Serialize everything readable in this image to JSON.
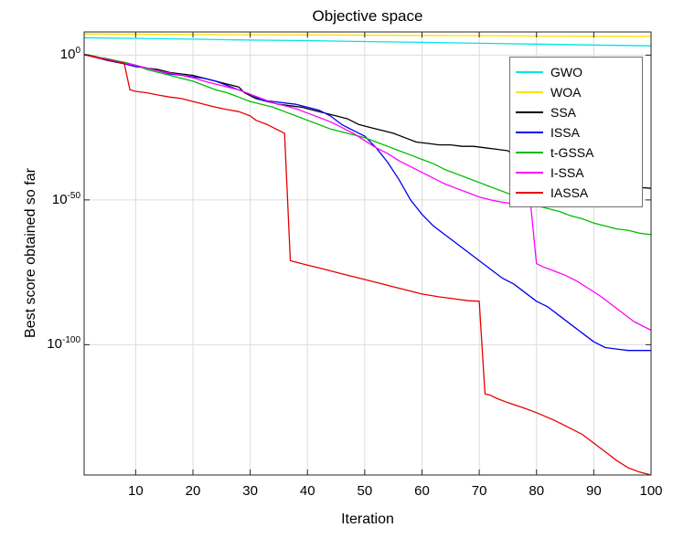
{
  "figure": {
    "background": "#ffffff",
    "axis_color": "#262626",
    "grid_color": "#dcdcdc",
    "tick_color": "#262626"
  },
  "chart_data": {
    "type": "line",
    "title": "Objective space",
    "xlabel": "Iteration",
    "ylabel": "Best score obtained so far",
    "x_range": [
      1,
      100
    ],
    "y_scale": "log10",
    "y_exp_range": [
      8,
      -145
    ],
    "x_ticks": [
      10,
      20,
      30,
      40,
      50,
      60,
      70,
      80,
      90,
      100
    ],
    "y_ticks_exponents": [
      0,
      -50,
      -100
    ],
    "grid": true,
    "legend_position": "top-right",
    "series": [
      {
        "name": "GWO",
        "color": "#00e5e5",
        "points_iter_log10score": [
          [
            1,
            6.0
          ],
          [
            10,
            5.8
          ],
          [
            20,
            5.5
          ],
          [
            30,
            5.2
          ],
          [
            40,
            5.0
          ],
          [
            50,
            4.7
          ],
          [
            60,
            4.4
          ],
          [
            70,
            4.1
          ],
          [
            80,
            3.8
          ],
          [
            90,
            3.5
          ],
          [
            100,
            3.2
          ]
        ]
      },
      {
        "name": "WOA",
        "color": "#ffe100",
        "points_iter_log10score": [
          [
            1,
            7.3
          ],
          [
            20,
            7.1
          ],
          [
            40,
            7.0
          ],
          [
            60,
            6.8
          ],
          [
            80,
            6.6
          ],
          [
            100,
            6.5
          ]
        ]
      },
      {
        "name": "SSA",
        "color": "#000000",
        "points_iter_log10score": [
          [
            1,
            0.3
          ],
          [
            3,
            -0.5
          ],
          [
            5,
            -1.5
          ],
          [
            8,
            -2.5
          ],
          [
            10,
            -3.5
          ],
          [
            12,
            -4.5
          ],
          [
            14,
            -5
          ],
          [
            16,
            -6
          ],
          [
            18,
            -6.5
          ],
          [
            20,
            -7
          ],
          [
            22,
            -8
          ],
          [
            24,
            -9
          ],
          [
            26,
            -10
          ],
          [
            28,
            -11
          ],
          [
            29,
            -13
          ],
          [
            31,
            -15
          ],
          [
            33,
            -16
          ],
          [
            35,
            -17
          ],
          [
            37,
            -17.5
          ],
          [
            39,
            -18
          ],
          [
            41,
            -19
          ],
          [
            43,
            -20
          ],
          [
            45,
            -21
          ],
          [
            47,
            -22
          ],
          [
            49,
            -24
          ],
          [
            51,
            -25
          ],
          [
            53,
            -26
          ],
          [
            55,
            -27
          ],
          [
            57,
            -28.5
          ],
          [
            59,
            -30
          ],
          [
            61,
            -30.5
          ],
          [
            63,
            -31
          ],
          [
            65,
            -31
          ],
          [
            67,
            -31.5
          ],
          [
            69,
            -31.5
          ],
          [
            71,
            -32
          ],
          [
            73,
            -32.5
          ],
          [
            75,
            -33
          ],
          [
            77,
            -36
          ],
          [
            78,
            -38
          ],
          [
            80,
            -38.5
          ],
          [
            82,
            -39
          ],
          [
            84,
            -39.5
          ],
          [
            86,
            -40
          ],
          [
            88,
            -43
          ],
          [
            89,
            -44
          ],
          [
            91,
            -44.5
          ],
          [
            93,
            -45
          ],
          [
            95,
            -45
          ],
          [
            97,
            -45.5
          ],
          [
            100,
            -46
          ]
        ]
      },
      {
        "name": "ISSA",
        "color": "#0000ee",
        "points_iter_log10score": [
          [
            1,
            0.2
          ],
          [
            3,
            -0.8
          ],
          [
            5,
            -1.8
          ],
          [
            8,
            -3
          ],
          [
            10,
            -4
          ],
          [
            12,
            -4.5
          ],
          [
            14,
            -5.5
          ],
          [
            16,
            -6.5
          ],
          [
            18,
            -7
          ],
          [
            20,
            -7.5
          ],
          [
            22,
            -8
          ],
          [
            24,
            -9
          ],
          [
            26,
            -10.5
          ],
          [
            28,
            -12
          ],
          [
            30,
            -13.5
          ],
          [
            32,
            -15.5
          ],
          [
            34,
            -16
          ],
          [
            36,
            -16.5
          ],
          [
            38,
            -17
          ],
          [
            40,
            -18
          ],
          [
            42,
            -19
          ],
          [
            44,
            -21
          ],
          [
            46,
            -24
          ],
          [
            48,
            -26
          ],
          [
            50,
            -28
          ],
          [
            52,
            -32
          ],
          [
            54,
            -37
          ],
          [
            56,
            -43
          ],
          [
            58,
            -50
          ],
          [
            60,
            -55
          ],
          [
            62,
            -59
          ],
          [
            64,
            -62
          ],
          [
            66,
            -65
          ],
          [
            68,
            -68
          ],
          [
            70,
            -71
          ],
          [
            72,
            -74
          ],
          [
            74,
            -77
          ],
          [
            76,
            -79
          ],
          [
            78,
            -82
          ],
          [
            80,
            -85
          ],
          [
            82,
            -87
          ],
          [
            84,
            -90
          ],
          [
            86,
            -93
          ],
          [
            88,
            -96
          ],
          [
            90,
            -99
          ],
          [
            92,
            -101
          ],
          [
            94,
            -101.5
          ],
          [
            96,
            -102
          ],
          [
            98,
            -102
          ],
          [
            100,
            -102
          ]
        ]
      },
      {
        "name": "t-GSSA",
        "color": "#00bb00",
        "points_iter_log10score": [
          [
            1,
            0.2
          ],
          [
            3,
            -0.6
          ],
          [
            5,
            -1.2
          ],
          [
            8,
            -2.5
          ],
          [
            10,
            -3.5
          ],
          [
            12,
            -5
          ],
          [
            14,
            -6
          ],
          [
            16,
            -7
          ],
          [
            18,
            -8
          ],
          [
            20,
            -9
          ],
          [
            22,
            -10.5
          ],
          [
            24,
            -12
          ],
          [
            26,
            -13
          ],
          [
            28,
            -14.5
          ],
          [
            30,
            -16
          ],
          [
            32,
            -17
          ],
          [
            34,
            -18
          ],
          [
            36,
            -19.5
          ],
          [
            38,
            -21
          ],
          [
            40,
            -22.5
          ],
          [
            42,
            -24
          ],
          [
            44,
            -25.5
          ],
          [
            46,
            -26.5
          ],
          [
            48,
            -27.5
          ],
          [
            50,
            -28.5
          ],
          [
            52,
            -30
          ],
          [
            54,
            -31.5
          ],
          [
            56,
            -33
          ],
          [
            58,
            -34.5
          ],
          [
            60,
            -36
          ],
          [
            62,
            -37.5
          ],
          [
            64,
            -39.5
          ],
          [
            66,
            -41
          ],
          [
            68,
            -42.5
          ],
          [
            70,
            -44
          ],
          [
            72,
            -45.5
          ],
          [
            74,
            -47
          ],
          [
            76,
            -48.5
          ],
          [
            78,
            -50
          ],
          [
            80,
            -52
          ],
          [
            82,
            -53
          ],
          [
            84,
            -54
          ],
          [
            86,
            -55.5
          ],
          [
            88,
            -56.5
          ],
          [
            90,
            -58
          ],
          [
            92,
            -59
          ],
          [
            94,
            -60
          ],
          [
            96,
            -60.5
          ],
          [
            98,
            -61.5
          ],
          [
            100,
            -62
          ]
        ]
      },
      {
        "name": "I-SSA",
        "color": "#ff00ff",
        "points_iter_log10score": [
          [
            1,
            0.2
          ],
          [
            3,
            -0.7
          ],
          [
            5,
            -1.4
          ],
          [
            8,
            -2.8
          ],
          [
            10,
            -3.5
          ],
          [
            12,
            -4.5
          ],
          [
            14,
            -5.5
          ],
          [
            16,
            -6.2
          ],
          [
            18,
            -7
          ],
          [
            20,
            -7.8
          ],
          [
            22,
            -9
          ],
          [
            24,
            -10
          ],
          [
            26,
            -11
          ],
          [
            28,
            -12
          ],
          [
            30,
            -13.5
          ],
          [
            32,
            -15
          ],
          [
            34,
            -16.5
          ],
          [
            36,
            -17.5
          ],
          [
            38,
            -18.5
          ],
          [
            40,
            -20
          ],
          [
            42,
            -21.5
          ],
          [
            44,
            -23
          ],
          [
            46,
            -25
          ],
          [
            48,
            -27
          ],
          [
            50,
            -29.5
          ],
          [
            52,
            -32
          ],
          [
            54,
            -34
          ],
          [
            56,
            -36.5
          ],
          [
            58,
            -38.5
          ],
          [
            60,
            -40.5
          ],
          [
            62,
            -42.5
          ],
          [
            64,
            -44.5
          ],
          [
            66,
            -46
          ],
          [
            68,
            -47.5
          ],
          [
            70,
            -49
          ],
          [
            72,
            -50
          ],
          [
            74,
            -50.8
          ],
          [
            76,
            -51.3
          ],
          [
            78,
            -51.8
          ],
          [
            79,
            -52
          ],
          [
            80,
            -72
          ],
          [
            81,
            -73
          ],
          [
            83,
            -74.5
          ],
          [
            85,
            -76
          ],
          [
            87,
            -78
          ],
          [
            89,
            -80.5
          ],
          [
            91,
            -83
          ],
          [
            93,
            -86
          ],
          [
            95,
            -89
          ],
          [
            97,
            -92
          ],
          [
            100,
            -95
          ]
        ]
      },
      {
        "name": "IASSA",
        "color": "#e60000",
        "points_iter_log10score": [
          [
            1,
            0.1
          ],
          [
            2,
            -0.3
          ],
          [
            3,
            -0.8
          ],
          [
            4,
            -1.2
          ],
          [
            5,
            -1.6
          ],
          [
            6,
            -2
          ],
          [
            7,
            -2.4
          ],
          [
            8,
            -2.8
          ],
          [
            9,
            -12
          ],
          [
            10,
            -12.5
          ],
          [
            12,
            -13
          ],
          [
            14,
            -13.8
          ],
          [
            16,
            -14.5
          ],
          [
            18,
            -15
          ],
          [
            20,
            -16
          ],
          [
            22,
            -17
          ],
          [
            24,
            -18
          ],
          [
            26,
            -18.8
          ],
          [
            28,
            -19.5
          ],
          [
            30,
            -21
          ],
          [
            31,
            -22.5
          ],
          [
            33,
            -24
          ],
          [
            35,
            -26
          ],
          [
            36,
            -27
          ],
          [
            37,
            -71
          ],
          [
            38,
            -71.5
          ],
          [
            40,
            -72.5
          ],
          [
            42,
            -73.5
          ],
          [
            45,
            -75
          ],
          [
            48,
            -76.5
          ],
          [
            50,
            -77.5
          ],
          [
            53,
            -79
          ],
          [
            55,
            -80
          ],
          [
            58,
            -81.5
          ],
          [
            60,
            -82.5
          ],
          [
            63,
            -83.5
          ],
          [
            65,
            -84
          ],
          [
            68,
            -84.8
          ],
          [
            70,
            -85
          ],
          [
            71,
            -117
          ],
          [
            72,
            -117.5
          ],
          [
            73,
            -118.5
          ],
          [
            75,
            -120
          ],
          [
            78,
            -122
          ],
          [
            80,
            -123.5
          ],
          [
            83,
            -126
          ],
          [
            85,
            -128
          ],
          [
            88,
            -131
          ],
          [
            90,
            -134
          ],
          [
            92,
            -137
          ],
          [
            94,
            -140
          ],
          [
            96,
            -142.5
          ],
          [
            98,
            -144
          ],
          [
            100,
            -145
          ]
        ]
      }
    ]
  }
}
